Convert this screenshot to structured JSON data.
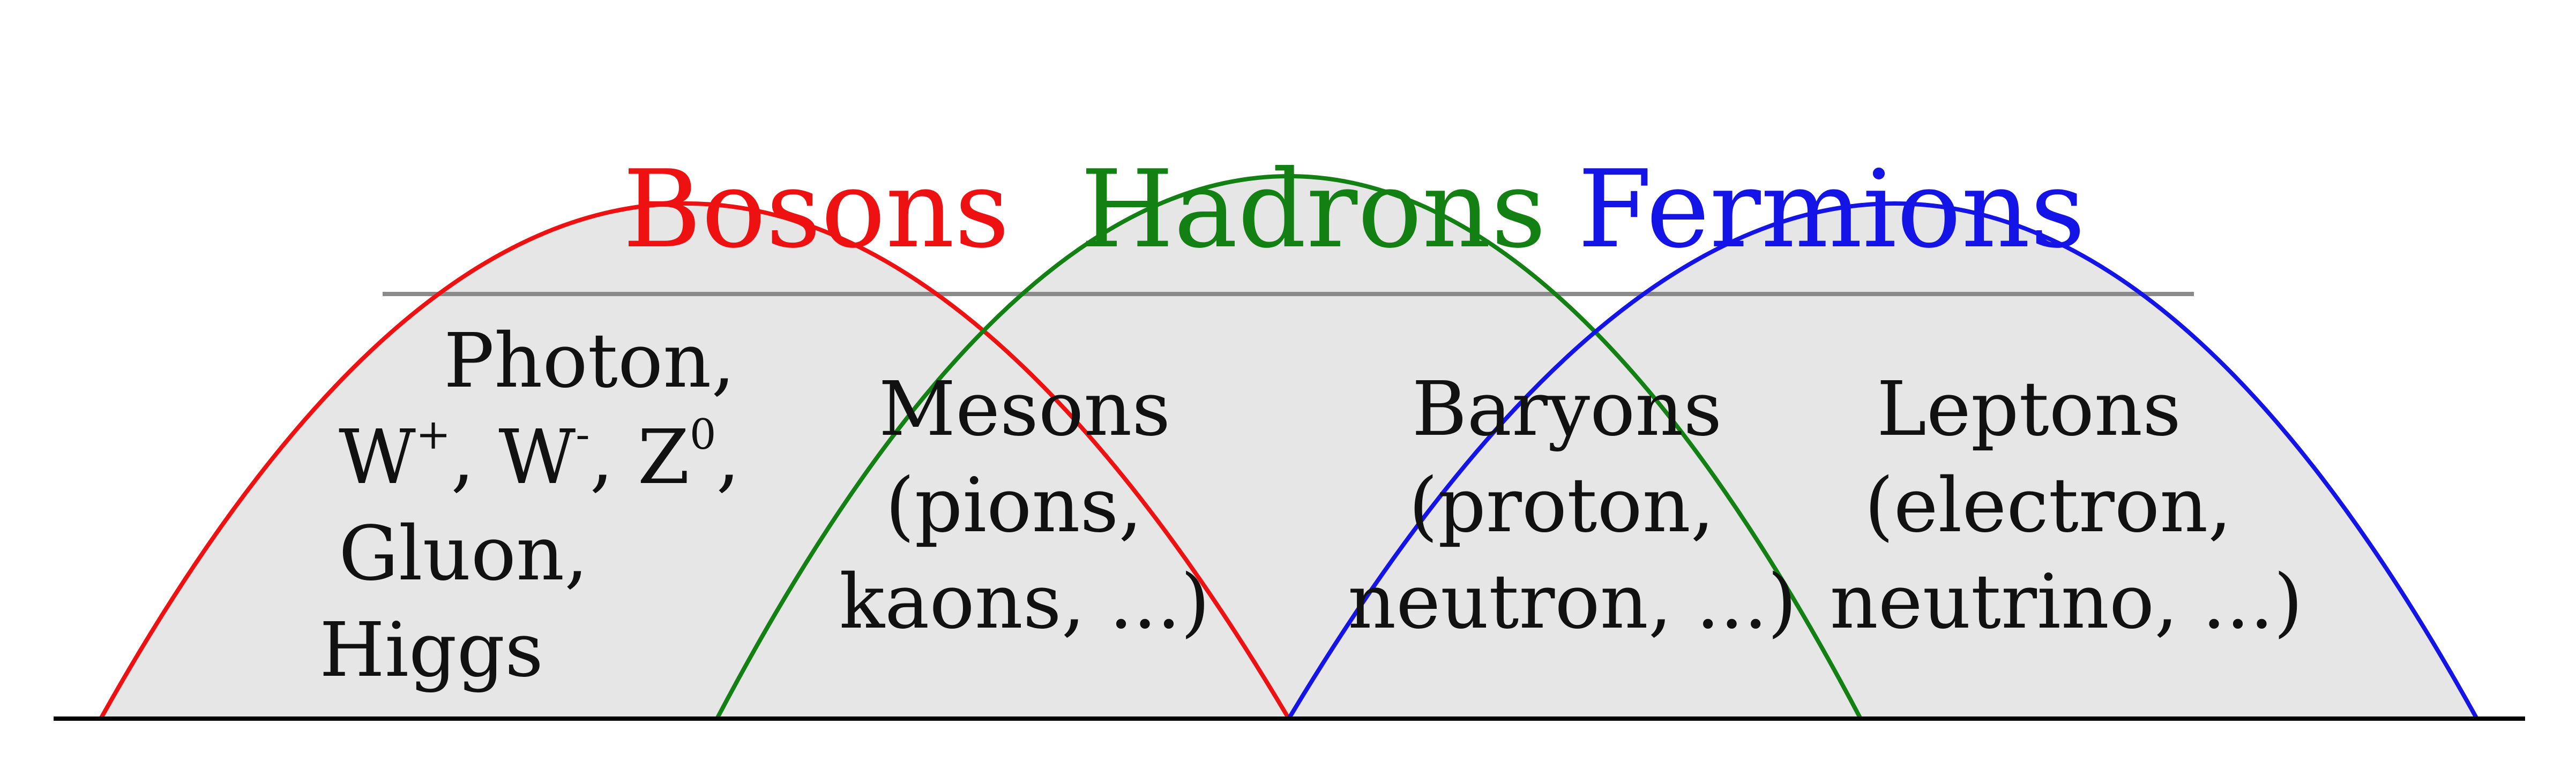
{
  "colors": {
    "bosons": "#ee1111",
    "hadrons": "#128012",
    "fermions": "#1414e6",
    "fill": "#e6e6e6",
    "divider": "#8a8a8a",
    "baseline": "#000000",
    "text": "#111111"
  },
  "headings": {
    "bosons": "Bosons",
    "hadrons": "Hadrons",
    "fermions": "Fermions"
  },
  "regions": {
    "bosons": {
      "line1": "Photon,",
      "w_plus_base": "W",
      "w_plus_sup": "+",
      "w_minus_base": "W",
      "w_minus_sup": "-",
      "z_base": "Z",
      "z_sup": "0",
      "sep": ", ",
      "end": ",",
      "line3": "Gluon,",
      "line4": "Higgs"
    },
    "mesons": {
      "line1": "Mesons",
      "line2": "(pions,",
      "line3": "kaons, ...)"
    },
    "baryons": {
      "line1": "Baryons",
      "line2": "(proton,",
      "line3": "neutron, ...)"
    },
    "leptons": {
      "line1": "Leptons",
      "line2": "(electron,",
      "line3": "neutrino, ...)"
    }
  }
}
